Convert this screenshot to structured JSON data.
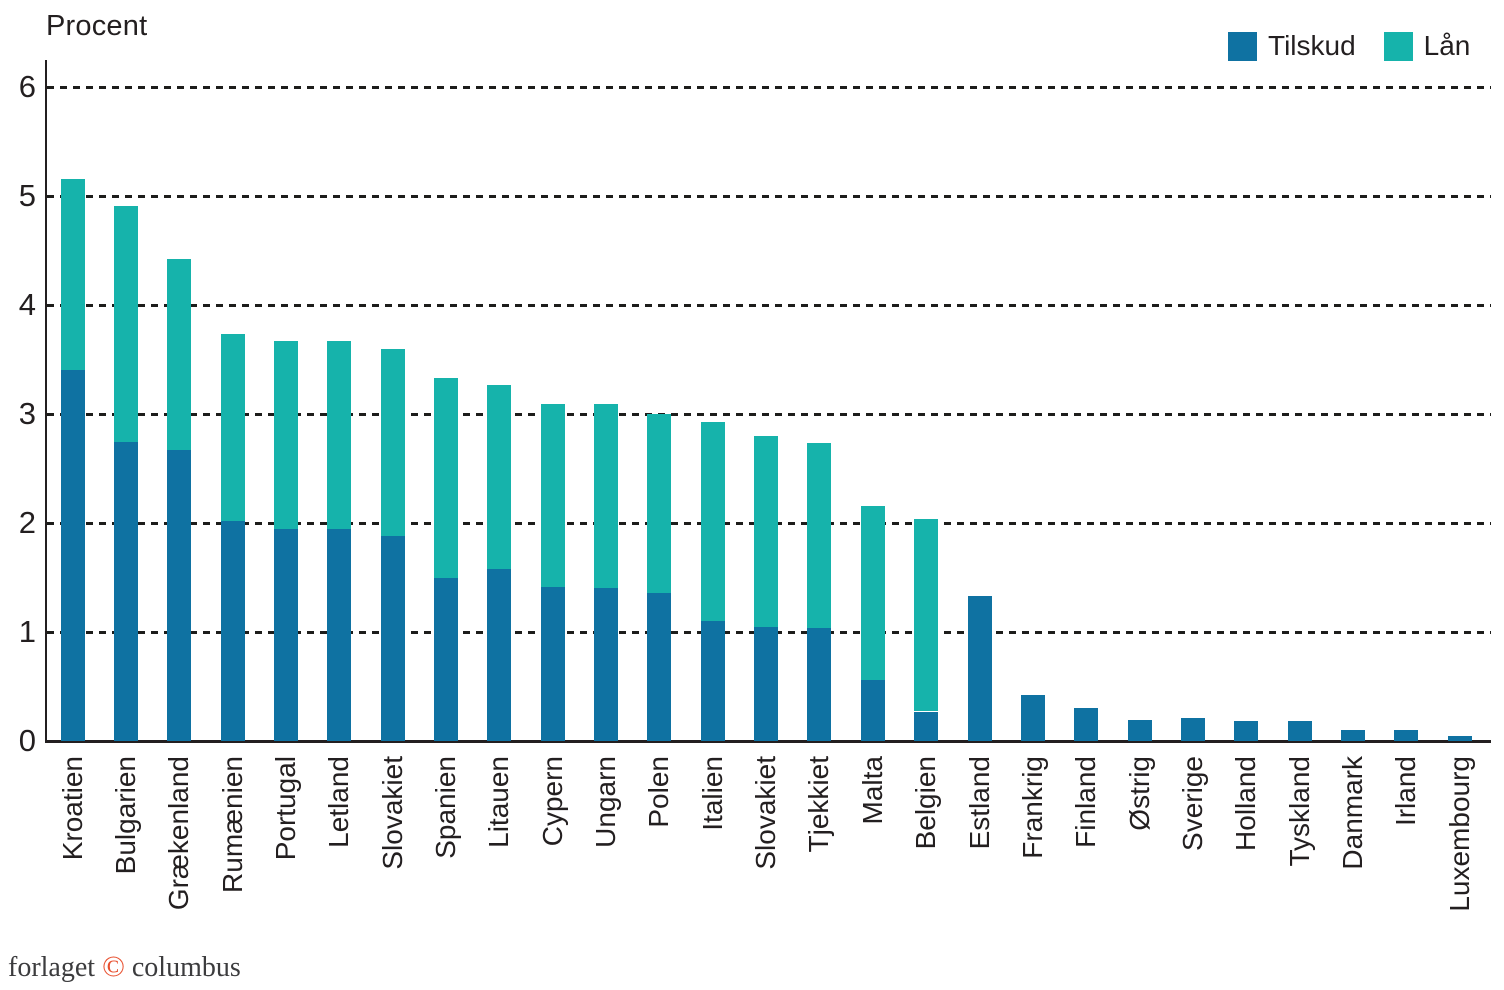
{
  "title": "Procent",
  "legend": [
    {
      "label": "Tilskud",
      "color": "#0f72a2"
    },
    {
      "label": "Lån",
      "color": "#16b3ab"
    }
  ],
  "footer": {
    "prefix": "forlaget",
    "copyright": "©",
    "suffix": "columbus"
  },
  "colors": {
    "tilskud": "#0f72a2",
    "laan": "#16b3ab",
    "axis": "#231f20",
    "footer_text": "#3c3c3e",
    "copyright_red": "#e8502f",
    "background": "#ffffff"
  },
  "chart_data": {
    "type": "bar",
    "stacked": true,
    "title": "Procent",
    "ylabel": "Procent",
    "xlabel": "",
    "ylim": [
      0,
      6
    ],
    "yticks": [
      0,
      1,
      2,
      3,
      4,
      5,
      6
    ],
    "grid": "horizontal dashed black lines at each integer",
    "legend_position": "top-right",
    "categories": [
      "Kroatien",
      "Bulgarien",
      "Grækenland",
      "Rumænien",
      "Portugal",
      "Letland",
      "Slovakiet",
      "Spanien",
      "Litauen",
      "Cypern",
      "Ungarn",
      "Polen",
      "Italien",
      "Slovakiet",
      "Tjekkiet",
      "Malta",
      "Belgien",
      "Estland",
      "Frankrig",
      "Finland",
      "Østrig",
      "Sverige",
      "Holland",
      "Tyskland",
      "Danmark",
      "Irland",
      "Luxembourg"
    ],
    "series": [
      {
        "name": "Tilskud",
        "color": "#0f72a2",
        "values": [
          3.4,
          2.74,
          2.67,
          2.02,
          1.95,
          1.95,
          1.88,
          1.5,
          1.58,
          1.41,
          1.4,
          1.36,
          1.1,
          1.05,
          1.04,
          0.56,
          0.27,
          1.33,
          0.42,
          0.3,
          0.19,
          0.21,
          0.18,
          0.18,
          0.1,
          0.1,
          0.05
        ]
      },
      {
        "name": "Lån",
        "color": "#16b3ab",
        "values": [
          1.76,
          2.17,
          1.75,
          1.71,
          1.72,
          1.72,
          1.72,
          1.83,
          1.69,
          1.68,
          1.69,
          1.64,
          1.83,
          1.75,
          1.69,
          1.6,
          1.77,
          0,
          0,
          0,
          0,
          0,
          0,
          0,
          0,
          0,
          0
        ]
      }
    ],
    "totals": [
      5.16,
      4.91,
      4.42,
      3.73,
      3.67,
      3.67,
      3.6,
      3.33,
      3.27,
      3.09,
      3.09,
      3.0,
      2.93,
      2.8,
      2.73,
      2.16,
      2.04,
      1.33,
      0.42,
      0.3,
      0.19,
      0.21,
      0.18,
      0.18,
      0.1,
      0.1,
      0.05
    ]
  }
}
